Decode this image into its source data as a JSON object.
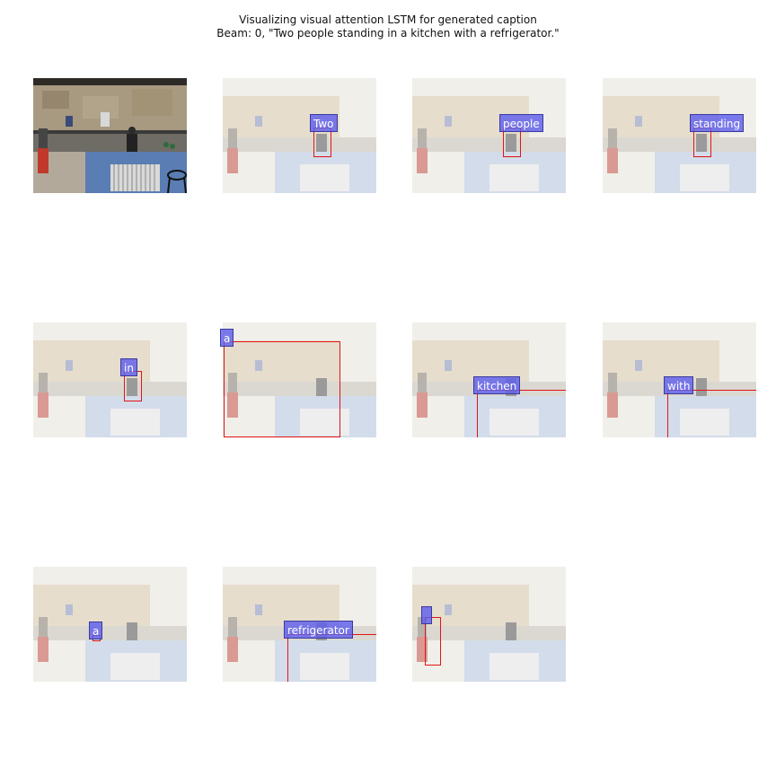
{
  "figure": {
    "title_line1": "Visualizing visual attention LSTM for generated caption",
    "title_line2": "Beam: 0, \"Two people standing in a kitchen with a refrigerator.\""
  },
  "panels": [
    {
      "word": "",
      "kind": "original"
    },
    {
      "word": "Two",
      "kind": "attention"
    },
    {
      "word": "people",
      "kind": "attention"
    },
    {
      "word": "standing",
      "kind": "attention"
    },
    {
      "word": "in",
      "kind": "attention"
    },
    {
      "word": "a",
      "kind": "attention"
    },
    {
      "word": "kitchen",
      "kind": "attention"
    },
    {
      "word": "with",
      "kind": "attention"
    },
    {
      "word": "a",
      "kind": "attention"
    },
    {
      "word": "refrigerator",
      "kind": "attention"
    },
    {
      "word": "",
      "kind": "attention"
    }
  ],
  "colors": {
    "word_label_bg": "#5f5feb",
    "attention_box": "#e01515"
  }
}
